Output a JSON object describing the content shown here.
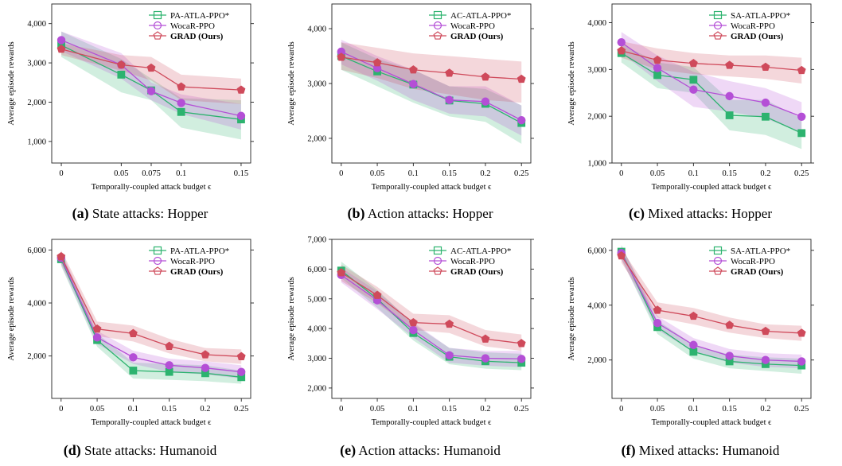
{
  "colors": {
    "green": "#2db36f",
    "purple": "#b44fd6",
    "red": "#cf4a5b"
  },
  "chart_data": [
    {
      "type": "line",
      "caption_label": "(a)",
      "caption_text": "State attacks: Hopper",
      "xlabel": "Temporally-coupled attack budget ϵ",
      "ylabel": "Average episode rewards",
      "x": [
        0,
        0.05,
        0.075,
        0.1,
        0.15
      ],
      "xticks": [
        "0",
        "0.05",
        "0.075",
        "0.1",
        "0.15"
      ],
      "xlim": [
        -0.008,
        0.158
      ],
      "ylim": [
        450,
        4500
      ],
      "yticks": [
        1000,
        2000,
        3000,
        4000
      ],
      "ytick_labels": [
        "1,000",
        "2,000",
        "3,000",
        "4,000"
      ],
      "series": [
        {
          "name": "PA-ATLA-PPO*",
          "marker": "square",
          "color": "#2db36f",
          "values": [
            3450,
            2700,
            2300,
            1750,
            1560
          ],
          "lower": [
            3150,
            2250,
            2050,
            1350,
            1050
          ],
          "upper": [
            3800,
            3100,
            2600,
            2100,
            2050
          ]
        },
        {
          "name": "WocaR-PPO",
          "marker": "circle",
          "color": "#b44fd6",
          "values": [
            3580,
            2950,
            2280,
            1980,
            1650
          ],
          "lower": [
            3300,
            2600,
            2050,
            1700,
            1300
          ],
          "upper": [
            3800,
            3250,
            2500,
            2200,
            1950
          ]
        },
        {
          "name": "GRAD (Ours)",
          "marker": "pentagon",
          "color": "#cf4a5b",
          "values": [
            3350,
            2950,
            2870,
            2390,
            2310
          ],
          "lower": [
            3200,
            2800,
            2550,
            2050,
            1950
          ],
          "upper": [
            3500,
            3200,
            3150,
            2700,
            2600
          ]
        }
      ]
    },
    {
      "type": "line",
      "caption_label": "(b)",
      "caption_text": "Action attacks: Hopper",
      "xlabel": "Temporally-coupled attack budget ϵ",
      "ylabel": "Average episode rewards",
      "x": [
        0,
        0.05,
        0.1,
        0.15,
        0.2,
        0.25
      ],
      "xticks": [
        "0",
        "0.05",
        "0.1",
        "0.15",
        "0.2",
        "0.25"
      ],
      "xlim": [
        -0.013,
        0.263
      ],
      "ylim": [
        1550,
        4450
      ],
      "yticks": [
        2000,
        3000,
        4000
      ],
      "ytick_labels": [
        "2,000",
        "3,000",
        "4,000"
      ],
      "series": [
        {
          "name": "AC-ATLA-PPO*",
          "marker": "square",
          "color": "#2db36f",
          "values": [
            3500,
            3220,
            2980,
            2690,
            2630,
            2280
          ],
          "lower": [
            3250,
            2950,
            2650,
            2400,
            2300,
            1900
          ],
          "upper": [
            3750,
            3450,
            3250,
            2950,
            2900,
            2600
          ]
        },
        {
          "name": "WocaR-PPO",
          "marker": "circle",
          "color": "#b44fd6",
          "values": [
            3580,
            3280,
            2990,
            2700,
            2670,
            2330
          ],
          "lower": [
            3350,
            3050,
            2700,
            2450,
            2400,
            2050
          ],
          "upper": [
            3800,
            3500,
            3250,
            2950,
            2950,
            2600
          ]
        },
        {
          "name": "GRAD (Ours)",
          "marker": "pentagon",
          "color": "#cf4a5b",
          "values": [
            3480,
            3380,
            3250,
            3190,
            3120,
            3080
          ],
          "lower": [
            3250,
            3100,
            2900,
            2800,
            2700,
            2650
          ],
          "upper": [
            3750,
            3650,
            3550,
            3500,
            3450,
            3400
          ]
        }
      ]
    },
    {
      "type": "line",
      "caption_label": "(c)",
      "caption_text": "Mixed attacks: Hopper",
      "xlabel": "Temporally-coupled attack budget ϵ",
      "ylabel": "Average episode rewards",
      "x": [
        0,
        0.05,
        0.1,
        0.15,
        0.2,
        0.25
      ],
      "xticks": [
        "0",
        "0.05",
        "0.1",
        "0.15",
        "0.2",
        "0.25"
      ],
      "xlim": [
        -0.013,
        0.263
      ],
      "ylim": [
        1000,
        4400
      ],
      "yticks": [
        1000,
        2000,
        3000,
        4000
      ],
      "ytick_labels": [
        "1,000",
        "2,000",
        "3,000",
        "4,000"
      ],
      "series": [
        {
          "name": "SA-ATLA-PPO*",
          "marker": "square",
          "color": "#2db36f",
          "values": [
            3350,
            2880,
            2780,
            2020,
            1990,
            1640
          ],
          "lower": [
            3150,
            2600,
            2500,
            1700,
            1600,
            1300
          ],
          "upper": [
            3550,
            3150,
            3050,
            2350,
            2350,
            1950
          ]
        },
        {
          "name": "WocaR-PPO",
          "marker": "circle",
          "color": "#b44fd6",
          "values": [
            3580,
            3030,
            2570,
            2430,
            2290,
            1990
          ],
          "lower": [
            3350,
            2750,
            2200,
            2100,
            1950,
            1650
          ],
          "upper": [
            3800,
            3300,
            2950,
            2750,
            2600,
            2300
          ]
        },
        {
          "name": "GRAD (Ours)",
          "marker": "pentagon",
          "color": "#cf4a5b",
          "values": [
            3400,
            3200,
            3130,
            3090,
            3050,
            2980
          ],
          "lower": [
            3250,
            3000,
            2900,
            2850,
            2800,
            2700
          ],
          "upper": [
            3600,
            3450,
            3350,
            3300,
            3300,
            3250
          ]
        }
      ]
    },
    {
      "type": "line",
      "caption_label": "(d)",
      "caption_text": "State attacks: Humanoid",
      "xlabel": "Temporally-coupled attack budget ϵ",
      "ylabel": "Average episode rewards",
      "x": [
        0,
        0.05,
        0.1,
        0.15,
        0.2,
        0.25
      ],
      "xticks": [
        "0",
        "0.05",
        "0.1",
        "0.15",
        "0.2",
        "0.25"
      ],
      "xlim": [
        -0.013,
        0.263
      ],
      "ylim": [
        400,
        6400
      ],
      "yticks": [
        2000,
        4000,
        6000
      ],
      "ytick_labels": [
        "2,000",
        "4,000",
        "6,000"
      ],
      "series": [
        {
          "name": "PA-ATLA-PPO*",
          "marker": "square",
          "color": "#2db36f",
          "values": [
            5650,
            2600,
            1450,
            1400,
            1350,
            1200
          ],
          "lower": [
            5400,
            2350,
            1150,
            1100,
            1050,
            950
          ],
          "upper": [
            5900,
            2850,
            1750,
            1700,
            1650,
            1450
          ]
        },
        {
          "name": "WocaR-PPO",
          "marker": "circle",
          "color": "#b44fd6",
          "values": [
            5700,
            2700,
            1950,
            1650,
            1550,
            1400
          ],
          "lower": [
            5450,
            2450,
            1700,
            1400,
            1300,
            1150
          ],
          "upper": [
            5950,
            2950,
            2200,
            1900,
            1800,
            1650
          ]
        },
        {
          "name": "GRAD (Ours)",
          "marker": "pentagon",
          "color": "#cf4a5b",
          "values": [
            5750,
            3020,
            2850,
            2370,
            2050,
            1980
          ],
          "lower": [
            5500,
            2750,
            2550,
            2100,
            1800,
            1700
          ],
          "upper": [
            6000,
            3300,
            3150,
            2650,
            2300,
            2250
          ]
        }
      ]
    },
    {
      "type": "line",
      "caption_label": "(e)",
      "caption_text": "Action attacks: Humanoid",
      "xlabel": "Temporally-coupled attack budget ϵ",
      "ylabel": "Average episode rewards",
      "x": [
        0,
        0.05,
        0.1,
        0.15,
        0.2,
        0.25
      ],
      "xticks": [
        "0",
        "0.05",
        "0.1",
        "0.15",
        "0.2",
        "0.25"
      ],
      "xlim": [
        -0.013,
        0.263
      ],
      "ylim": [
        1650,
        7000
      ],
      "yticks": [
        2000,
        3000,
        4000,
        5000,
        6000,
        7000
      ],
      "ytick_labels": [
        "2,000",
        "3,000",
        "4,000",
        "5,000",
        "6,000",
        "7,000"
      ],
      "series": [
        {
          "name": "AC-ATLA-PPO*",
          "marker": "square",
          "color": "#2db36f",
          "values": [
            5950,
            5000,
            3850,
            3050,
            2900,
            2850
          ],
          "lower": [
            5700,
            4700,
            3600,
            2800,
            2650,
            2600
          ],
          "upper": [
            6250,
            5300,
            4150,
            3350,
            3200,
            3150
          ]
        },
        {
          "name": "WocaR-PPO",
          "marker": "circle",
          "color": "#b44fd6",
          "values": [
            5800,
            4950,
            3950,
            3100,
            3000,
            2980
          ],
          "lower": [
            5550,
            4650,
            3700,
            2850,
            2750,
            2700
          ],
          "upper": [
            6050,
            5250,
            4200,
            3350,
            3250,
            3250
          ]
        },
        {
          "name": "GRAD (Ours)",
          "marker": "pentagon",
          "color": "#cf4a5b",
          "values": [
            5880,
            5120,
            4200,
            4150,
            3650,
            3500
          ],
          "lower": [
            5600,
            4850,
            3950,
            3850,
            3400,
            3250
          ],
          "upper": [
            6150,
            5400,
            4500,
            4450,
            3950,
            3800
          ]
        }
      ]
    },
    {
      "type": "line",
      "caption_label": "(f)",
      "caption_text": "Mixed attacks: Humanoid",
      "xlabel": "Temporally-coupled attack budget ϵ",
      "ylabel": "Average episode rewards",
      "x": [
        0,
        0.05,
        0.1,
        0.15,
        0.2,
        0.25
      ],
      "xticks": [
        "0",
        "0.05",
        "0.1",
        "0.15",
        "0.2",
        "0.25"
      ],
      "xlim": [
        -0.013,
        0.263
      ],
      "ylim": [
        600,
        6400
      ],
      "yticks": [
        2000,
        4000,
        6000
      ],
      "ytick_labels": [
        "2,000",
        "4,000",
        "6,000"
      ],
      "series": [
        {
          "name": "SA-ATLA-PPO*",
          "marker": "square",
          "color": "#2db36f",
          "values": [
            5950,
            3200,
            2300,
            1950,
            1850,
            1800
          ],
          "lower": [
            5700,
            2950,
            2050,
            1700,
            1600,
            1500
          ],
          "upper": [
            6200,
            3450,
            2550,
            2200,
            2100,
            2050
          ]
        },
        {
          "name": "WocaR-PPO",
          "marker": "circle",
          "color": "#b44fd6",
          "values": [
            5900,
            3350,
            2550,
            2150,
            2000,
            1950
          ],
          "lower": [
            5650,
            3100,
            2300,
            1900,
            1750,
            1700
          ],
          "upper": [
            6150,
            3600,
            2800,
            2400,
            2250,
            2200
          ]
        },
        {
          "name": "GRAD (Ours)",
          "marker": "pentagon",
          "color": "#cf4a5b",
          "values": [
            5800,
            3820,
            3600,
            3270,
            3050,
            2980
          ],
          "lower": [
            5550,
            3550,
            3300,
            3000,
            2800,
            2700
          ],
          "upper": [
            6050,
            4100,
            3900,
            3550,
            3300,
            3250
          ]
        }
      ]
    }
  ]
}
